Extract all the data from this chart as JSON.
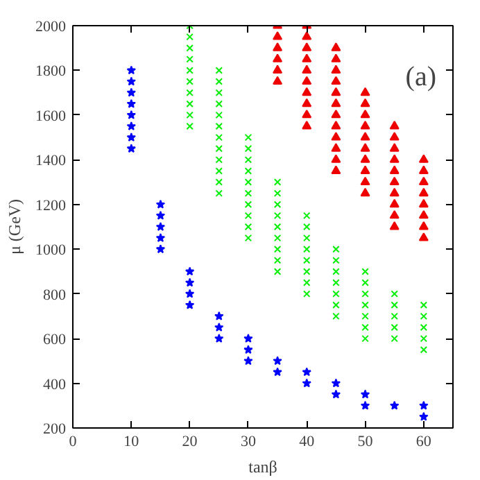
{
  "chart_data": {
    "type": "scatter",
    "xlabel": "tanβ",
    "ylabel": "μ (GeV)",
    "annotations": [
      "(a)"
    ],
    "xlim": [
      0,
      65
    ],
    "ylim": [
      200,
      2000
    ],
    "xticks": [
      0,
      10,
      20,
      30,
      40,
      50,
      60
    ],
    "yticks": [
      200,
      400,
      600,
      800,
      1000,
      1200,
      1400,
      1600,
      1800,
      2000
    ],
    "series": [
      {
        "color": "#0000ff",
        "marker": "star",
        "x": [
          10,
          10,
          10,
          10,
          10,
          10,
          10,
          10,
          15,
          15,
          15,
          15,
          15,
          20,
          20,
          20,
          20,
          25,
          25,
          25,
          30,
          30,
          30,
          35,
          35,
          40,
          40,
          45,
          45,
          50,
          50,
          55,
          60,
          60
        ],
        "values": [
          1450,
          1500,
          1550,
          1600,
          1650,
          1700,
          1750,
          1800,
          1000,
          1050,
          1100,
          1150,
          1200,
          750,
          800,
          850,
          900,
          600,
          650,
          700,
          500,
          550,
          600,
          450,
          500,
          400,
          450,
          350,
          400,
          300,
          350,
          300,
          250,
          300
        ]
      },
      {
        "color": "#00ee00",
        "marker": "cross",
        "x": [
          20,
          20,
          20,
          20,
          20,
          20,
          20,
          20,
          20,
          20,
          25,
          25,
          25,
          25,
          25,
          25,
          25,
          25,
          25,
          25,
          25,
          25,
          30,
          30,
          30,
          30,
          30,
          30,
          30,
          30,
          30,
          30,
          35,
          35,
          35,
          35,
          35,
          35,
          35,
          35,
          35,
          40,
          40,
          40,
          40,
          40,
          40,
          40,
          40,
          45,
          45,
          45,
          45,
          45,
          45,
          45,
          50,
          50,
          50,
          50,
          50,
          50,
          50,
          55,
          55,
          55,
          55,
          55,
          60,
          60,
          60,
          60,
          60
        ],
        "values": [
          1550,
          1600,
          1650,
          1700,
          1750,
          1800,
          1850,
          1900,
          1950,
          2000,
          1250,
          1300,
          1350,
          1400,
          1450,
          1500,
          1550,
          1600,
          1650,
          1700,
          1750,
          1800,
          1050,
          1100,
          1150,
          1200,
          1250,
          1300,
          1350,
          1400,
          1450,
          1500,
          900,
          950,
          1000,
          1050,
          1100,
          1150,
          1200,
          1250,
          1300,
          800,
          850,
          900,
          950,
          1000,
          1050,
          1100,
          1150,
          700,
          750,
          800,
          850,
          900,
          950,
          1000,
          600,
          650,
          700,
          750,
          800,
          850,
          900,
          600,
          650,
          700,
          750,
          800,
          550,
          600,
          650,
          700,
          750
        ]
      },
      {
        "color": "#ee0000",
        "marker": "triangle",
        "x": [
          35,
          35,
          35,
          35,
          35,
          35,
          40,
          40,
          40,
          40,
          40,
          40,
          40,
          40,
          40,
          40,
          45,
          45,
          45,
          45,
          45,
          45,
          45,
          45,
          45,
          45,
          45,
          45,
          50,
          50,
          50,
          50,
          50,
          50,
          50,
          50,
          50,
          50,
          55,
          55,
          55,
          55,
          55,
          55,
          55,
          55,
          55,
          55,
          60,
          60,
          60,
          60,
          60,
          60,
          60,
          60
        ],
        "values": [
          1750,
          1800,
          1850,
          1900,
          1950,
          2000,
          1550,
          1600,
          1650,
          1700,
          1750,
          1800,
          1850,
          1900,
          1950,
          2000,
          1350,
          1400,
          1450,
          1500,
          1550,
          1600,
          1650,
          1700,
          1750,
          1800,
          1850,
          1900,
          1250,
          1300,
          1350,
          1400,
          1450,
          1500,
          1550,
          1600,
          1650,
          1700,
          1100,
          1150,
          1200,
          1250,
          1300,
          1350,
          1400,
          1450,
          1500,
          1550,
          1050,
          1100,
          1150,
          1200,
          1250,
          1300,
          1350,
          1400
        ]
      }
    ]
  }
}
